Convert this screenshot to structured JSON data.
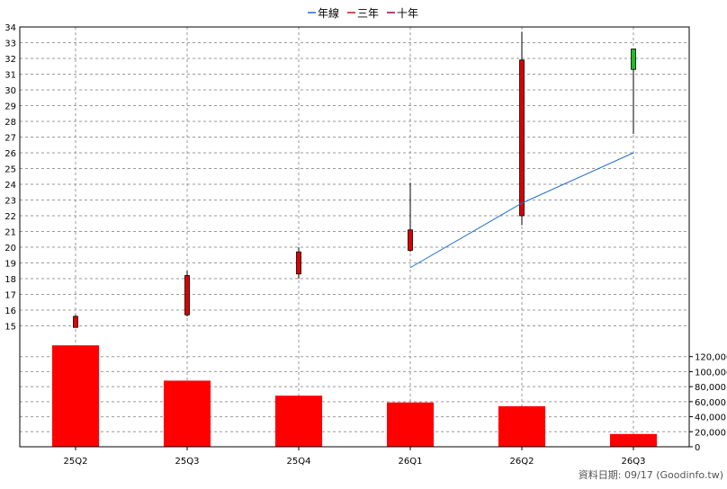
{
  "legend": [
    {
      "label": "年線",
      "color": "#1f6fd0"
    },
    {
      "label": "三年",
      "color": "#d01010"
    },
    {
      "label": "十年",
      "color": "#a0004a"
    }
  ],
  "footer_text": "資料日期: 09/17  (Goodinfo.tw)",
  "chart_data": [
    {
      "type": "candlestick",
      "categories": [
        "25Q2",
        "25Q3",
        "25Q4",
        "26Q1",
        "26Q2",
        "26Q3"
      ],
      "ylim": [
        14,
        34
      ],
      "yticks": [
        15,
        16,
        17,
        18,
        19,
        20,
        21,
        22,
        23,
        24,
        25,
        26,
        27,
        28,
        29,
        30,
        31,
        32,
        33,
        34
      ],
      "grid": true,
      "legend_position": "top-center",
      "candles": [
        {
          "open": 15.6,
          "close": 14.9,
          "high": 15.7,
          "low": 14.9,
          "direction": "down"
        },
        {
          "open": 18.2,
          "close": 15.7,
          "high": 18.5,
          "low": 15.6,
          "direction": "down"
        },
        {
          "open": 19.7,
          "close": 18.3,
          "high": 20.0,
          "low": 18.0,
          "direction": "down"
        },
        {
          "open": 21.1,
          "close": 19.8,
          "high": 24.1,
          "low": 19.7,
          "direction": "down"
        },
        {
          "open": 31.9,
          "close": 22.0,
          "high": 33.7,
          "low": 21.4,
          "direction": "down"
        },
        {
          "open": 31.3,
          "close": 32.6,
          "high": 32.6,
          "low": 27.2,
          "direction": "up"
        }
      ],
      "series": [
        {
          "name": "年線",
          "type": "line",
          "x": [
            "26Q1",
            "26Q2",
            "26Q3"
          ],
          "values": [
            18.7,
            22.8,
            26.0
          ]
        }
      ]
    },
    {
      "type": "bar",
      "categories": [
        "25Q2",
        "25Q3",
        "25Q4",
        "26Q1",
        "26Q2",
        "26Q3"
      ],
      "values": [
        135000,
        88000,
        68000,
        59000,
        54000,
        17000
      ],
      "ylim": [
        0,
        140000
      ],
      "yticks": [
        0,
        20000,
        40000,
        60000,
        80000,
        100000,
        120000
      ],
      "ytick_labels": [
        "0",
        "20,000",
        "40,000",
        "60,000",
        "80,000",
        "100,000",
        "120,000"
      ],
      "grid": true,
      "color": "#ff0000"
    }
  ]
}
